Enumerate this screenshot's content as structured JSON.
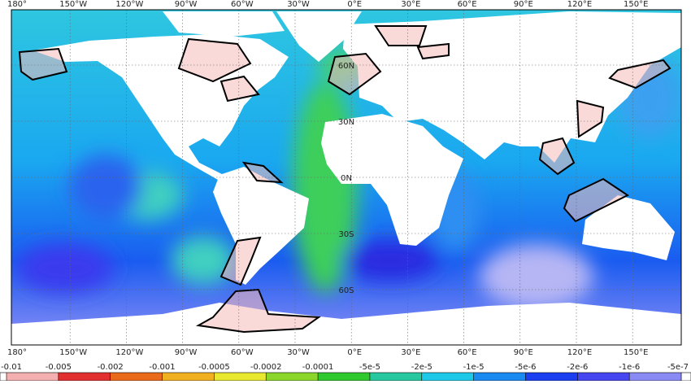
{
  "map": {
    "longitudes": [
      "180°",
      "150°W",
      "120°W",
      "90°W",
      "60°W",
      "30°W",
      "0°E",
      "30°E",
      "60°E",
      "90°E",
      "120°E",
      "150°E"
    ],
    "latitudes": [
      "60N",
      "30N",
      "0N",
      "30S",
      "60S"
    ],
    "colorbar": {
      "labels": [
        "-0.01",
        "-0.005",
        "-0.002",
        "-0.001",
        "-0.0005",
        "-0.0002",
        "-0.0001",
        "-5e-5",
        "-2e-5",
        "-1e-5",
        "-5e-6",
        "-2e-6",
        "-1e-6",
        "-5e-7"
      ]
    }
  }
}
